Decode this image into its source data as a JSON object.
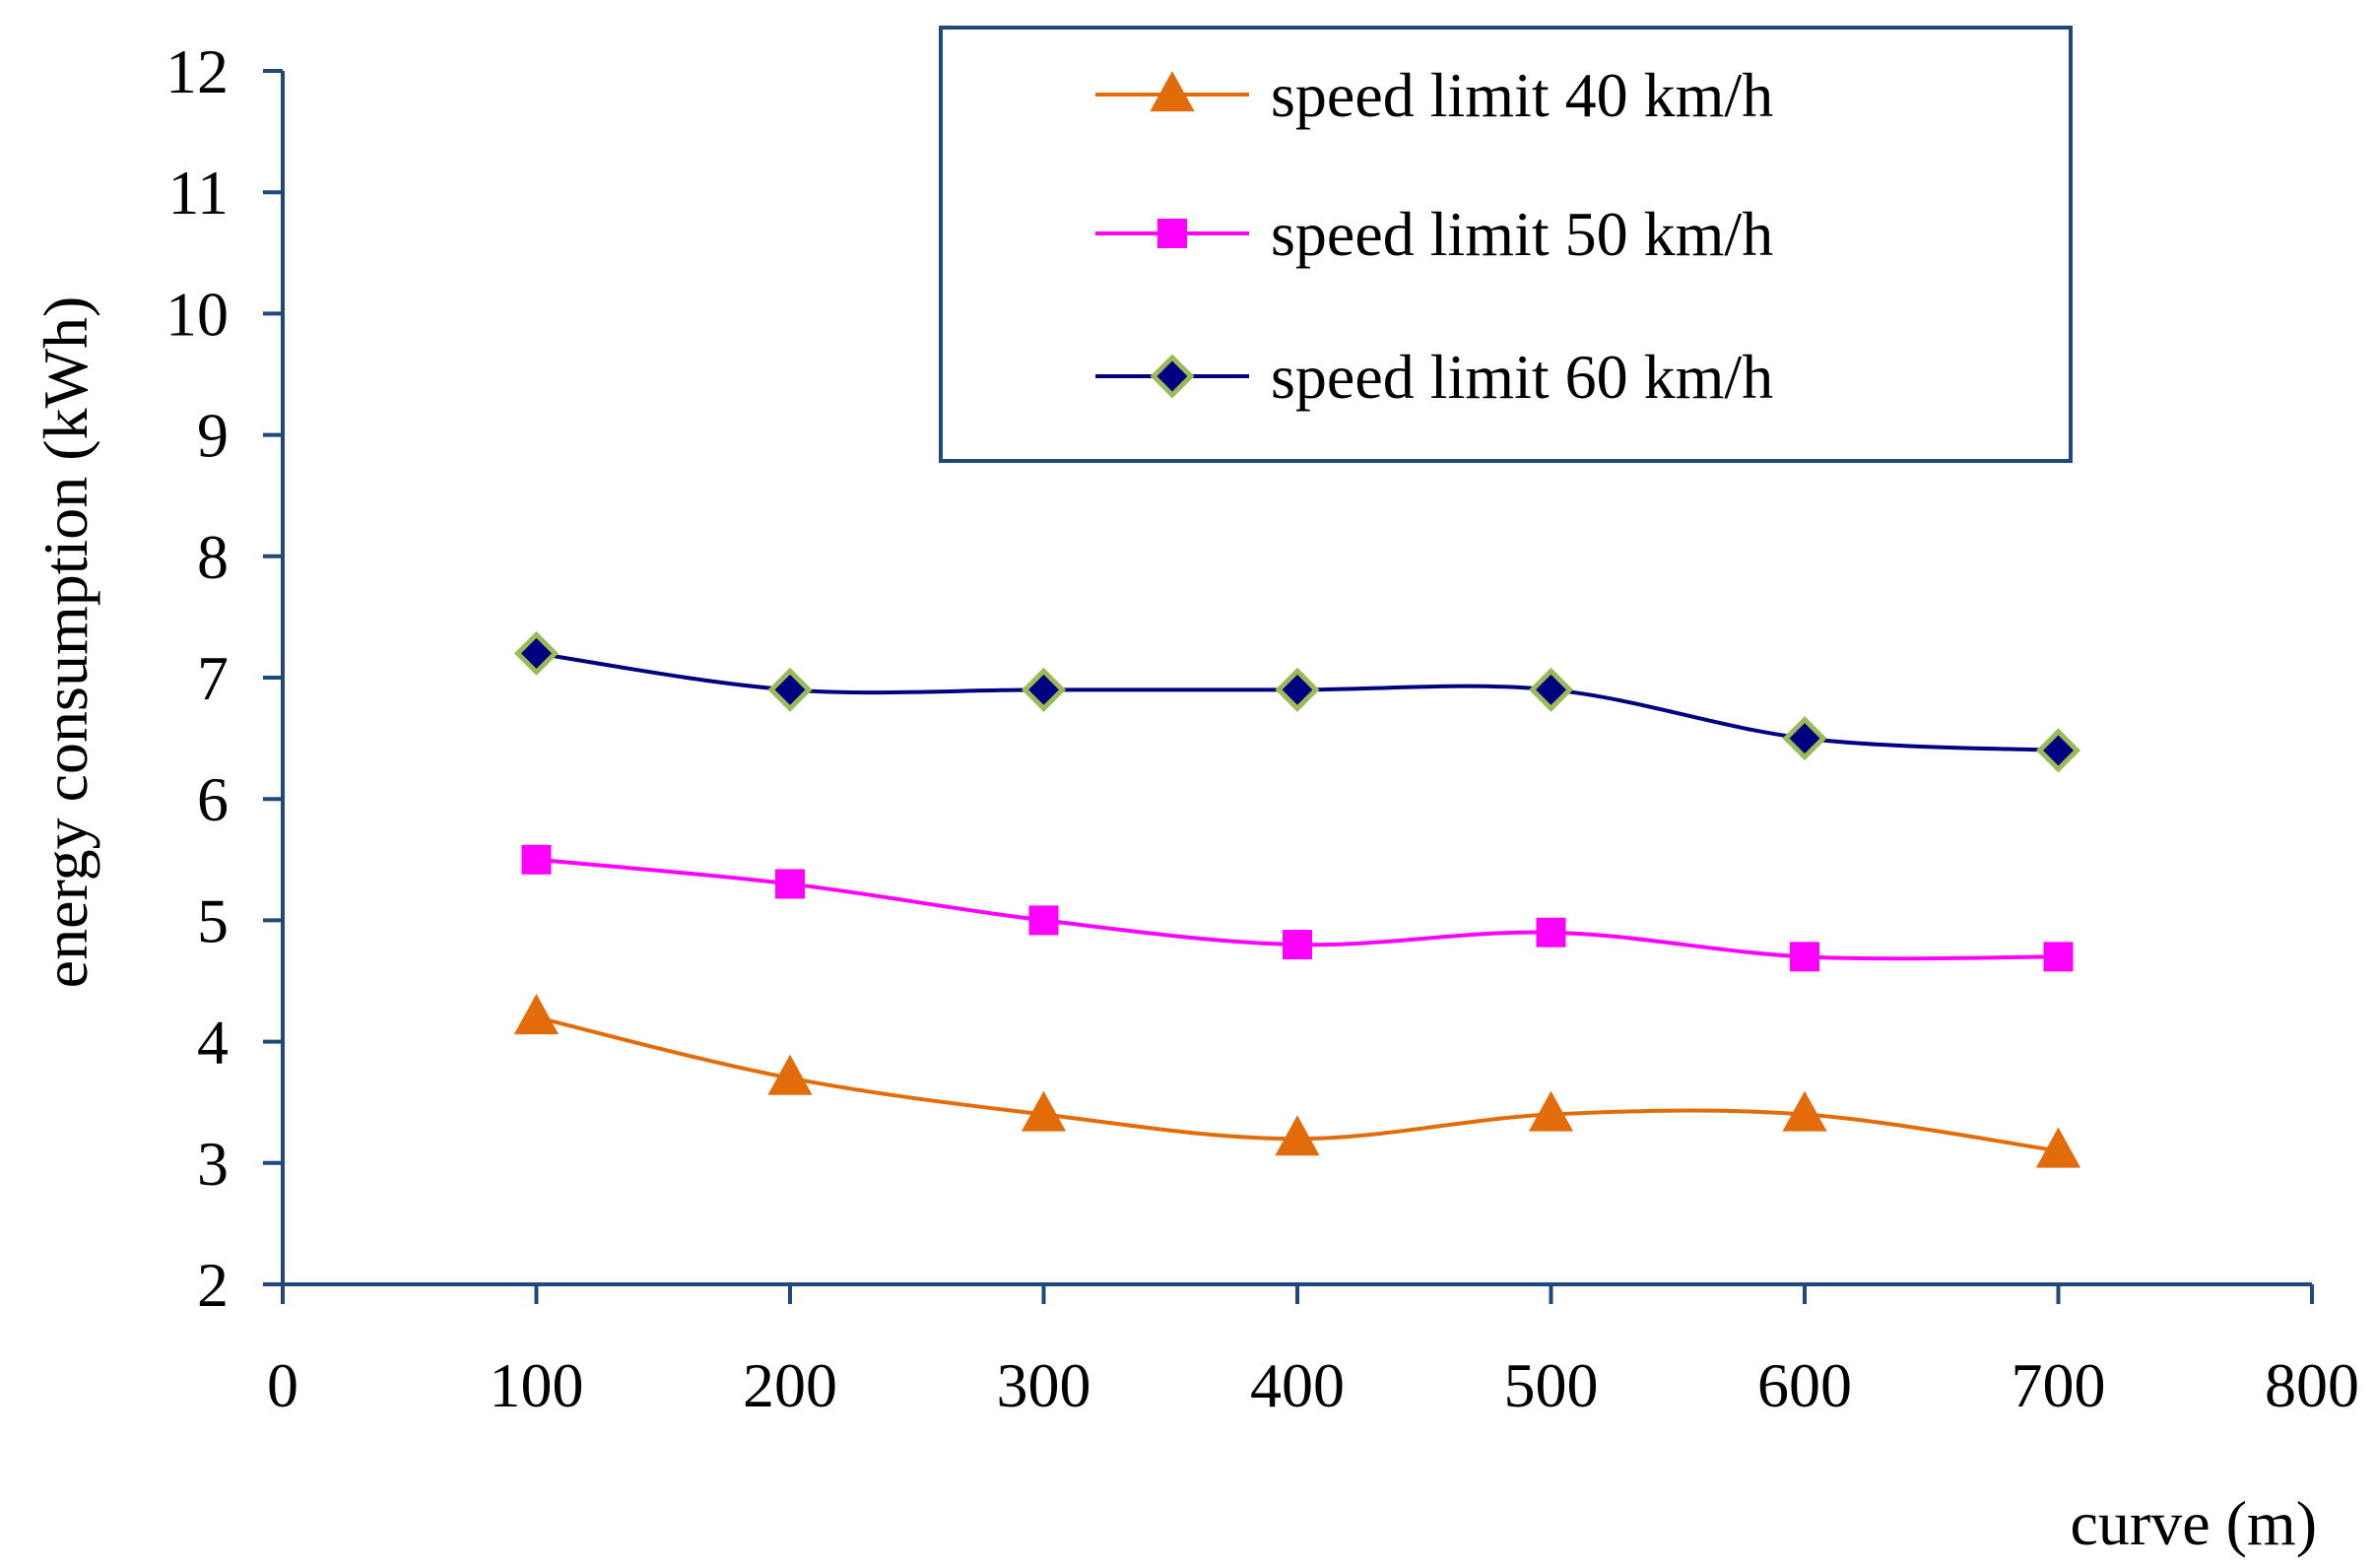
{
  "chart_data": {
    "type": "line",
    "title": "",
    "xlabel": "curve (m)",
    "ylabel": "energy consumption (kWh)",
    "xlim": [
      0,
      800
    ],
    "ylim": [
      2,
      12
    ],
    "xticks": [
      "0",
      "100",
      "200",
      "300",
      "400",
      "500",
      "600",
      "700",
      "800"
    ],
    "yticks": [
      "2",
      "3",
      "4",
      "5",
      "6",
      "7",
      "8",
      "9",
      "10",
      "11",
      "12"
    ],
    "grid": false,
    "legend_position": "top-right",
    "x": [
      100,
      200,
      300,
      400,
      500,
      600,
      700
    ],
    "series": [
      {
        "name": "speed limit 40 km/h",
        "marker": "triangle",
        "color": "#E36C0A",
        "values": [
          4.2,
          3.7,
          3.4,
          3.2,
          3.4,
          3.4,
          3.1
        ]
      },
      {
        "name": "speed limit 50 km/h",
        "marker": "square",
        "color": "#FF00FF",
        "values": [
          5.5,
          5.3,
          5.0,
          4.8,
          4.9,
          4.7,
          4.7
        ]
      },
      {
        "name": "speed limit 60 km/h",
        "marker": "diamond",
        "color": "#000080",
        "marker_fill": "#000080",
        "marker_edge": "#9BBB59",
        "values": [
          7.2,
          6.9,
          6.9,
          6.9,
          6.9,
          6.5,
          6.4
        ]
      }
    ],
    "axis_color": "#1F497D"
  }
}
